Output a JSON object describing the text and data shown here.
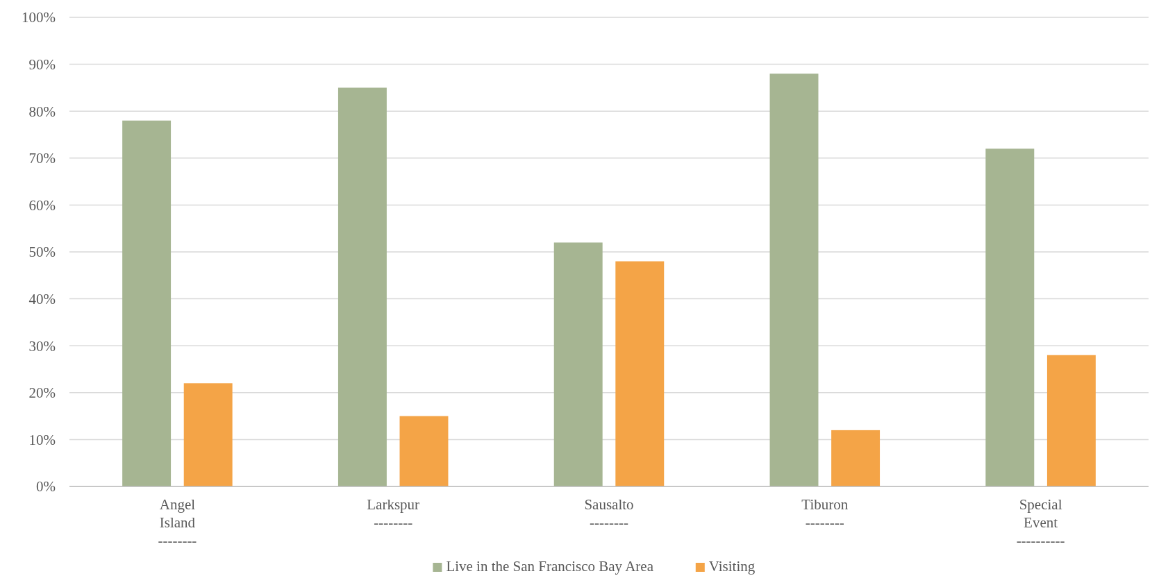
{
  "chart_data": {
    "type": "bar",
    "categories": [
      "Angel\nIsland\n--------",
      "Larkspur\n--------",
      "Sausalto\n--------",
      "Tiburon\n--------",
      "Special\nEvent\n----------"
    ],
    "series": [
      {
        "name": "Live in the San Francisco Bay Area",
        "color": "#a6b592",
        "values": [
          78,
          85,
          52,
          88,
          72
        ]
      },
      {
        "name": "Visiting",
        "color": "#f4a447",
        "values": [
          22,
          15,
          48,
          12,
          28
        ]
      }
    ],
    "ylim": [
      0,
      100
    ],
    "yticks": [
      {
        "value": 0,
        "label": "0%"
      },
      {
        "value": 10,
        "label": "10%"
      },
      {
        "value": 20,
        "label": "20%"
      },
      {
        "value": 30,
        "label": "30%"
      },
      {
        "value": 40,
        "label": "40%"
      },
      {
        "value": 50,
        "label": "50%"
      },
      {
        "value": 60,
        "label": "60%"
      },
      {
        "value": 70,
        "label": "70%"
      },
      {
        "value": 80,
        "label": "80%"
      },
      {
        "value": 90,
        "label": "90%"
      },
      {
        "value": 100,
        "label": "100%"
      }
    ],
    "grid": "y",
    "legend": "bottom"
  }
}
